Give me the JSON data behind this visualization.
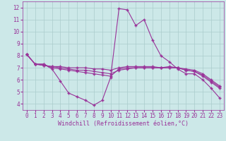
{
  "xlabel": "Windchill (Refroidissement éolien,°C)",
  "xlim": [
    -0.5,
    23.5
  ],
  "ylim": [
    3.5,
    12.5
  ],
  "xticks": [
    0,
    1,
    2,
    3,
    4,
    5,
    6,
    7,
    8,
    9,
    10,
    11,
    12,
    13,
    14,
    15,
    16,
    17,
    18,
    19,
    20,
    21,
    22,
    23
  ],
  "yticks": [
    4,
    5,
    6,
    7,
    8,
    9,
    10,
    11,
    12
  ],
  "bg_color": "#cce8e8",
  "grid_color": "#aacccc",
  "line_color": "#993399",
  "series": [
    [
      8.1,
      7.3,
      7.3,
      6.9,
      5.9,
      4.9,
      4.6,
      4.3,
      3.9,
      4.3,
      6.2,
      11.9,
      11.8,
      10.5,
      11.0,
      9.3,
      8.0,
      7.5,
      6.9,
      6.5,
      6.5,
      6.0,
      5.3,
      4.5
    ],
    [
      8.1,
      7.3,
      7.3,
      7.0,
      6.9,
      6.8,
      6.7,
      6.6,
      6.5,
      6.4,
      6.3,
      6.9,
      7.0,
      7.0,
      7.0,
      7.0,
      7.0,
      7.0,
      7.0,
      6.8,
      6.7,
      6.3,
      5.8,
      5.3
    ],
    [
      8.1,
      7.3,
      7.2,
      7.1,
      7.0,
      6.9,
      6.8,
      6.8,
      6.7,
      6.6,
      6.5,
      6.8,
      6.9,
      7.0,
      7.0,
      7.0,
      7.0,
      7.0,
      7.0,
      6.8,
      6.7,
      6.4,
      5.9,
      5.4
    ],
    [
      8.1,
      7.3,
      7.2,
      7.1,
      7.1,
      7.0,
      7.0,
      7.0,
      6.9,
      6.9,
      6.8,
      7.0,
      7.1,
      7.1,
      7.1,
      7.1,
      7.0,
      7.1,
      7.0,
      6.9,
      6.8,
      6.5,
      6.0,
      5.5
    ]
  ],
  "marker": "+",
  "markersize": 3,
  "linewidth": 0.8,
  "tick_fontsize": 5.5,
  "xlabel_fontsize": 6.0
}
